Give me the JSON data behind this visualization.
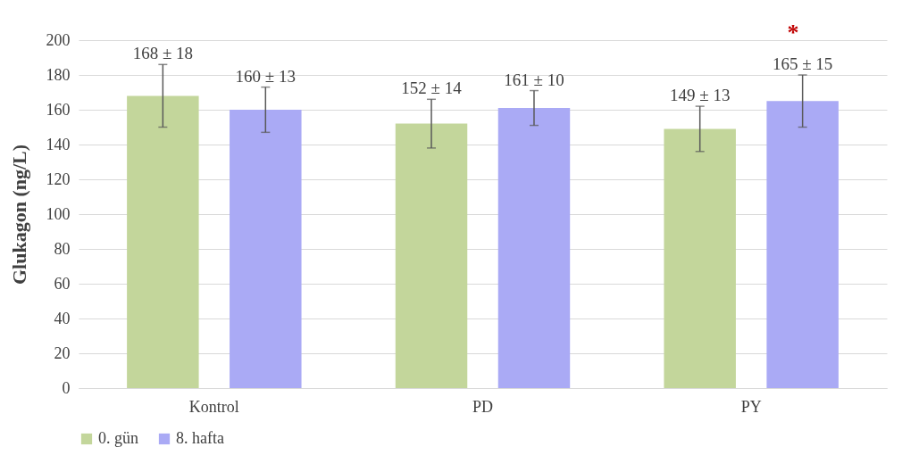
{
  "chart_data": {
    "type": "bar",
    "ylabel": "Glukagon (ng/L)",
    "categories": [
      "Kontrol",
      "PD",
      "PY"
    ],
    "series": [
      {
        "name": "0. gün",
        "color": "#c3d69b",
        "values": [
          168,
          152,
          149
        ],
        "errors": [
          18,
          14,
          13
        ],
        "value_labels": [
          "168 ± 18",
          "152 ± 14",
          "149 ± 13"
        ]
      },
      {
        "name": "8. hafta",
        "color": "#aaaaf5",
        "values": [
          160,
          161,
          165
        ],
        "errors": [
          13,
          10,
          15
        ],
        "value_labels": [
          "160 ± 13",
          "161 ± 10",
          "165 ± 15"
        ]
      }
    ],
    "ylim": [
      0,
      200
    ],
    "yticks": [
      0,
      20,
      40,
      60,
      80,
      100,
      120,
      140,
      160,
      180,
      200
    ],
    "grid": "y",
    "legend": "bottom",
    "annotations": [
      "*"
    ]
  }
}
